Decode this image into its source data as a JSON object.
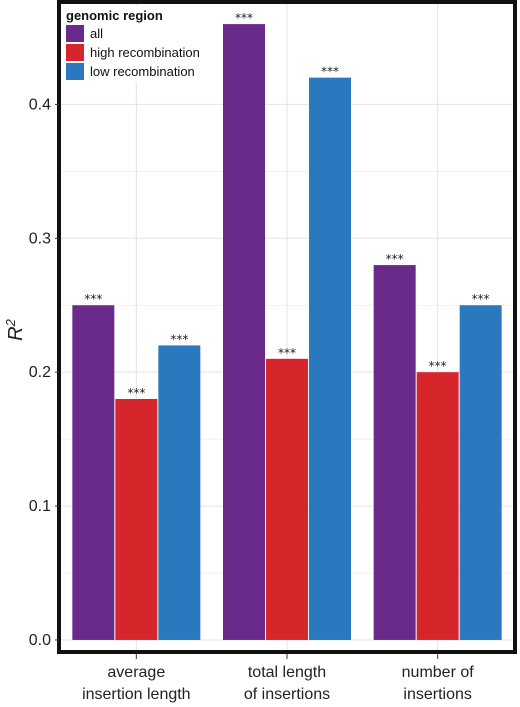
{
  "chart_data": {
    "type": "bar",
    "categories": [
      [
        "average",
        "insertion length"
      ],
      [
        "total length",
        "of insertions"
      ],
      [
        "number of",
        "insertions"
      ]
    ],
    "series": [
      {
        "name": "all",
        "color": "#6a2a8c",
        "values": [
          0.25,
          0.46,
          0.28
        ],
        "labels": [
          "***",
          "***",
          "***"
        ]
      },
      {
        "name": "high recombination",
        "color": "#d7262b",
        "values": [
          0.18,
          0.21,
          0.2
        ],
        "labels": [
          "***",
          "***",
          "***"
        ]
      },
      {
        "name": "low recombination",
        "color": "#2a78bd",
        "values": [
          0.22,
          0.42,
          0.25
        ],
        "labels": [
          "***",
          "***",
          "***"
        ]
      }
    ],
    "ylabel": "R",
    "ylabel_superscript": "2",
    "ylim": [
      -0.0075,
      0.475
    ],
    "yticks": [
      0.0,
      0.1,
      0.2,
      0.3,
      0.4
    ],
    "ytick_labels": [
      "0.0",
      "0.1",
      "0.2",
      "0.3",
      "0.4"
    ],
    "legend": {
      "title": "genomic region",
      "placement": "top-left"
    },
    "grid": true
  }
}
